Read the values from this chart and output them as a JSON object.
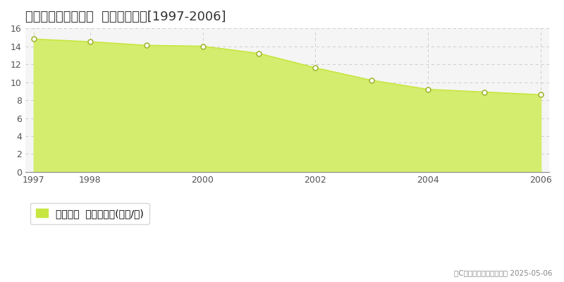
{
  "title": "生駒郡三郷町勢野東  基準地価推移[1997-2006]",
  "years": [
    1997,
    1998,
    1999,
    2000,
    2001,
    2002,
    2003,
    2004,
    2005,
    2006
  ],
  "values": [
    14.8,
    14.5,
    14.1,
    14.0,
    13.2,
    11.6,
    10.2,
    9.2,
    8.9,
    8.6
  ],
  "ylim": [
    0,
    16
  ],
  "yticks": [
    0,
    2,
    4,
    6,
    8,
    10,
    12,
    14,
    16
  ],
  "xticks": [
    1997,
    1998,
    2000,
    2002,
    2004,
    2006
  ],
  "line_color": "#c8e641",
  "fill_color": "#d4ed6e",
  "marker_facecolor": "#ffffff",
  "marker_edgecolor": "#a0b830",
  "background_color": "#ffffff",
  "plot_bg_color": "#f5f5f5",
  "grid_color": "#cccccc",
  "title_fontsize": 13,
  "axis_fontsize": 9,
  "legend_label": "基準地価  平均坪単価(万円/坪)",
  "copyright_text": "（C）土地価格ドットコム 2025-05-06",
  "legend_color": "#c8e641"
}
